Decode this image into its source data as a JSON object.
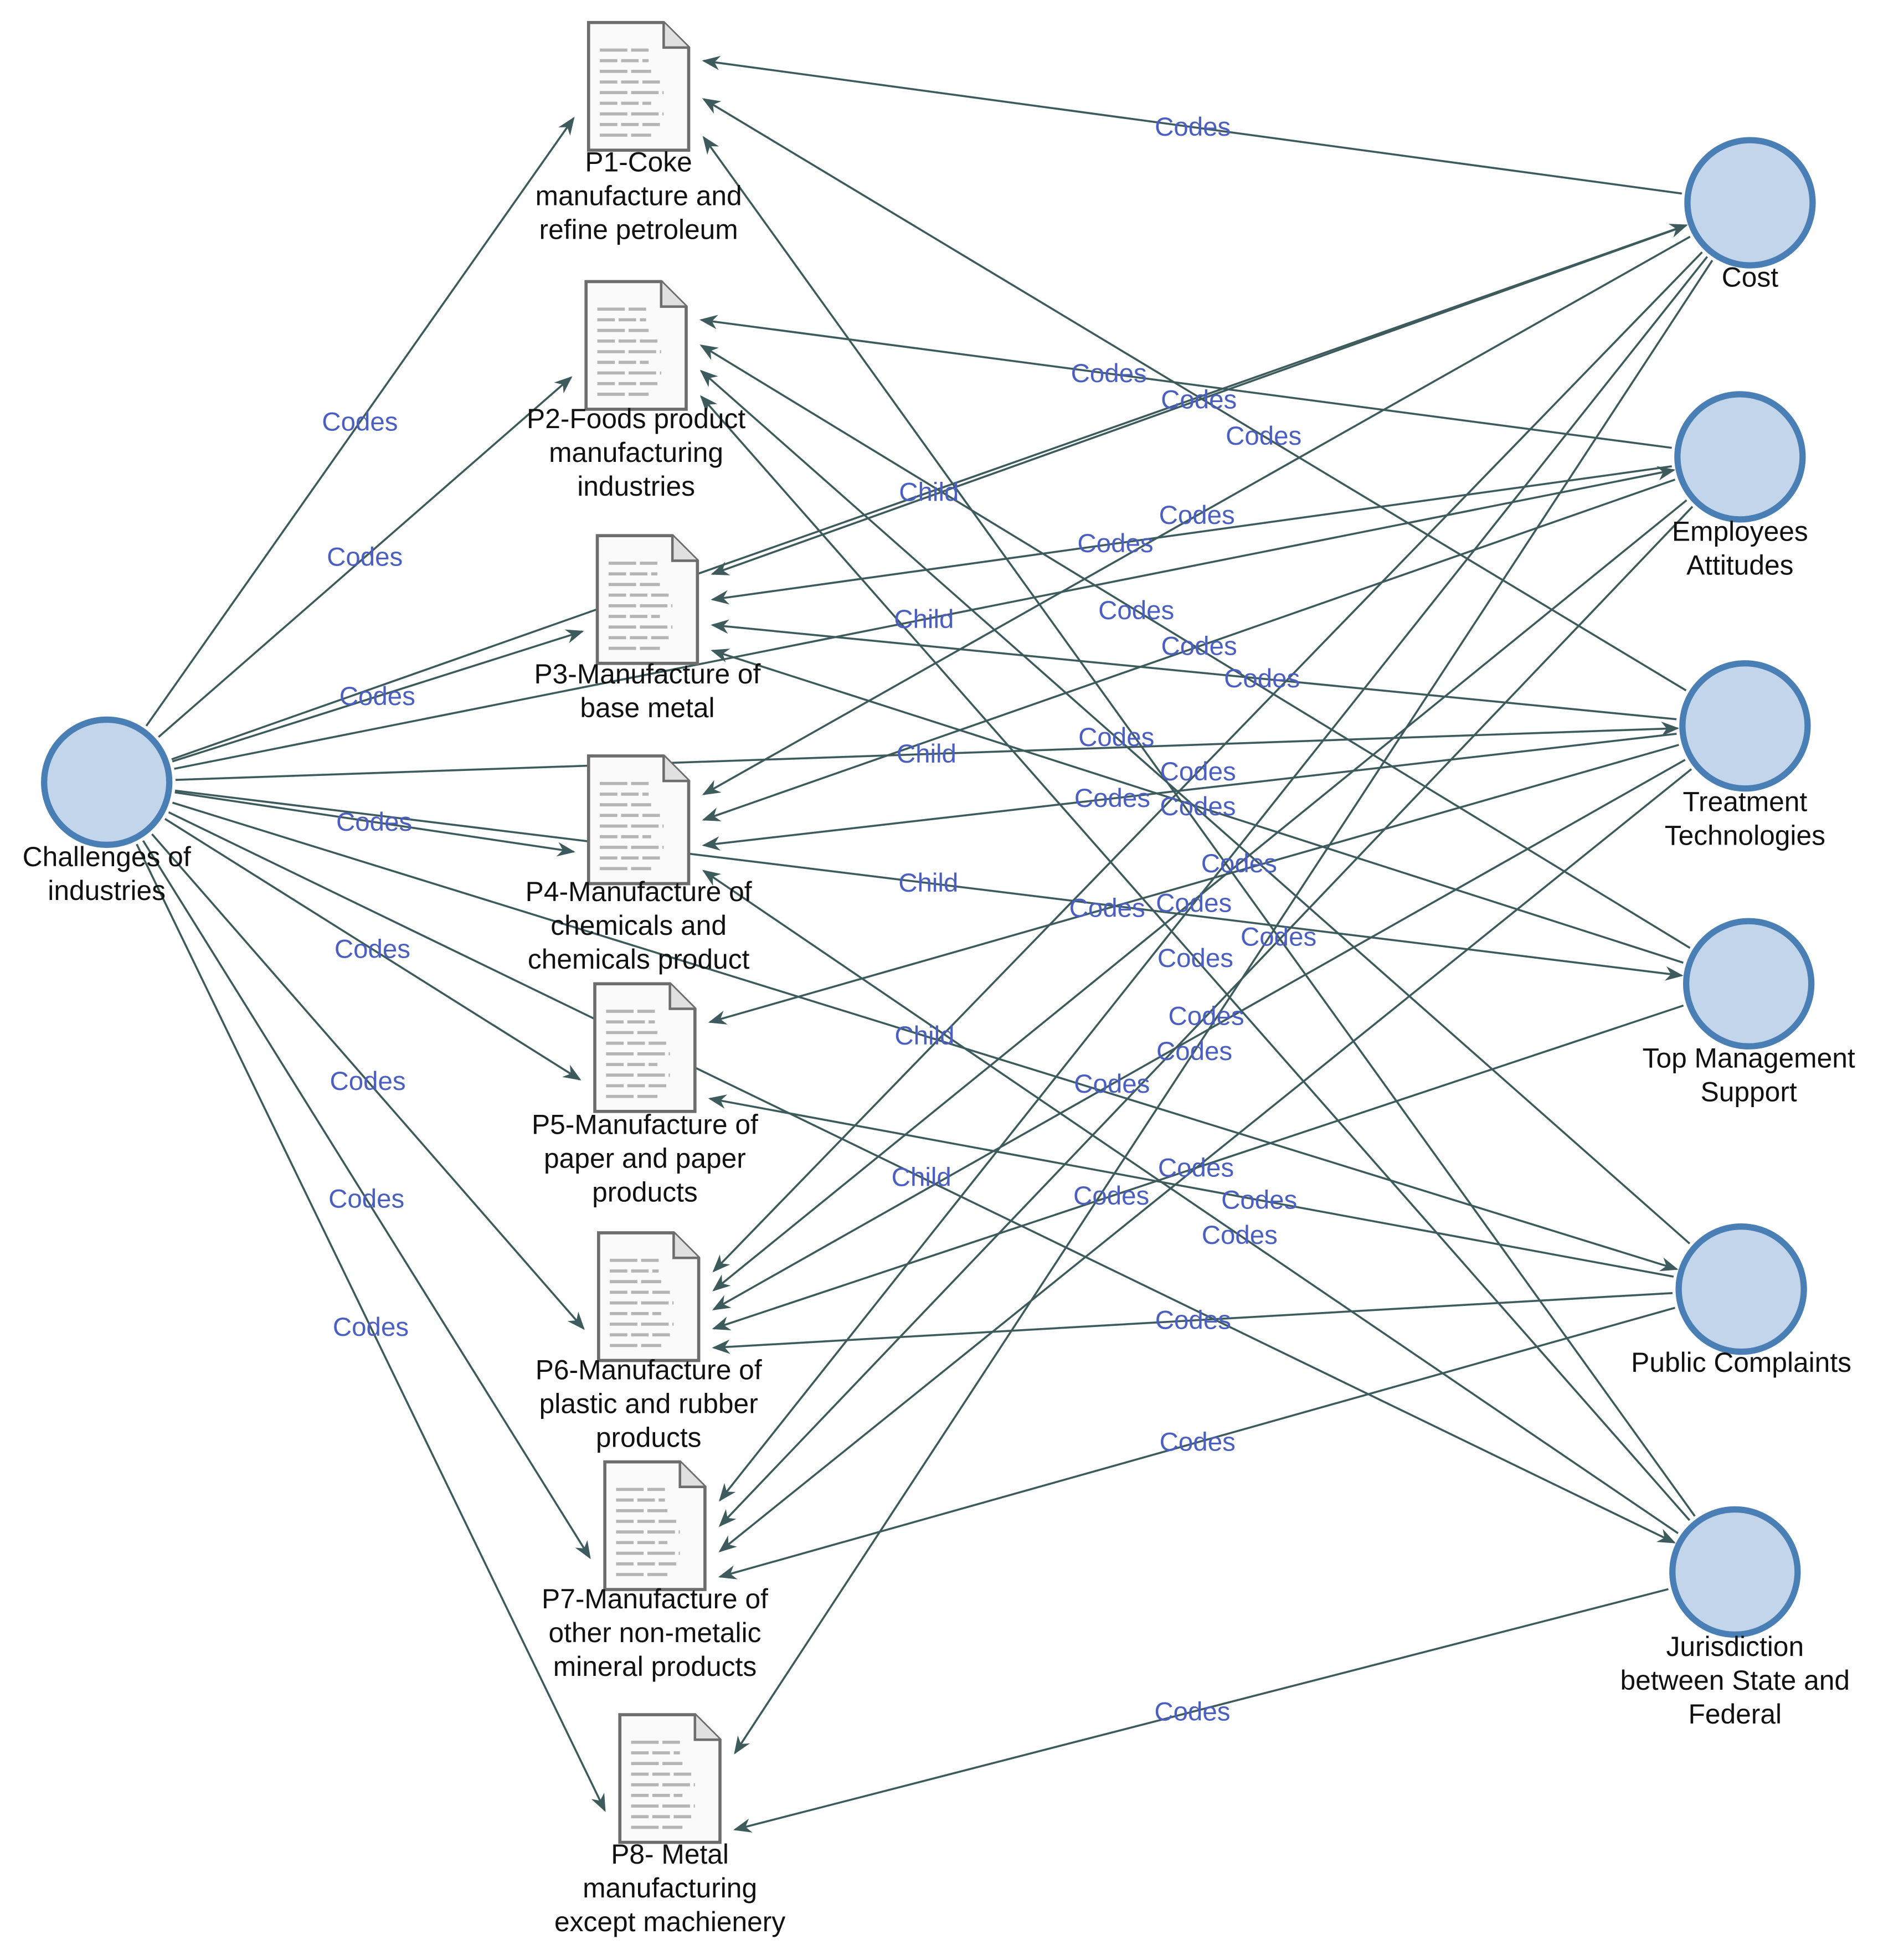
{
  "colors": {
    "edge": "#3d5b5c",
    "edge_label": "#4a5fc1",
    "circle_fill": "#c3d5ea",
    "circle_stroke": "#4a7fb5",
    "doc_stroke": "#6d6d6d"
  },
  "hub": {
    "id": "hub",
    "label": [
      "Challenges of",
      "industries"
    ],
    "icon": "circle-node"
  },
  "documents": [
    {
      "id": "P1",
      "label": [
        "P1-Coke",
        "manufacture and",
        "refine petroleum"
      ],
      "icon": "document-icon"
    },
    {
      "id": "P2",
      "label": [
        "P2-Foods product",
        "manufacturing",
        "industries"
      ],
      "icon": "document-icon"
    },
    {
      "id": "P3",
      "label": [
        "P3-Manufacture of",
        "base metal"
      ],
      "icon": "document-icon"
    },
    {
      "id": "P4",
      "label": [
        "P4-Manufacture of",
        "chemicals and",
        "chemicals product"
      ],
      "icon": "document-icon"
    },
    {
      "id": "P5",
      "label": [
        "P5-Manufacture of",
        "paper and paper",
        "products"
      ],
      "icon": "document-icon"
    },
    {
      "id": "P6",
      "label": [
        "P6-Manufacture of",
        "plastic and rubber",
        "products"
      ],
      "icon": "document-icon"
    },
    {
      "id": "P7",
      "label": [
        "P7-Manufacture of",
        "other non-metalic",
        "mineral products"
      ],
      "icon": "document-icon"
    },
    {
      "id": "P8",
      "label": [
        "P8- Metal",
        "manufacturing",
        "except machienery"
      ],
      "icon": "document-icon"
    }
  ],
  "themes": [
    {
      "id": "cost",
      "label": [
        "Cost"
      ],
      "icon": "circle-node"
    },
    {
      "id": "emp",
      "label": [
        "Employees",
        "Attitudes"
      ],
      "icon": "circle-node"
    },
    {
      "id": "treat",
      "label": [
        "Treatment",
        "Technologies"
      ],
      "icon": "circle-node"
    },
    {
      "id": "top",
      "label": [
        "Top Management",
        "Support"
      ],
      "icon": "circle-node"
    },
    {
      "id": "pub",
      "label": [
        "Public Complaints"
      ],
      "icon": "circle-node"
    },
    {
      "id": "jur",
      "label": [
        "Jurisdiction",
        "between State and",
        "Federal"
      ],
      "icon": "circle-node"
    }
  ],
  "edges": [
    {
      "from": "hub",
      "to": "P1",
      "label": "Codes"
    },
    {
      "from": "hub",
      "to": "P2",
      "label": "Codes"
    },
    {
      "from": "hub",
      "to": "P3",
      "label": "Codes"
    },
    {
      "from": "hub",
      "to": "P4",
      "label": "Codes"
    },
    {
      "from": "hub",
      "to": "P5",
      "label": "Codes"
    },
    {
      "from": "hub",
      "to": "P6",
      "label": "Codes"
    },
    {
      "from": "hub",
      "to": "P7",
      "label": "Codes"
    },
    {
      "from": "hub",
      "to": "P8",
      "label": "Codes"
    },
    {
      "from": "hub",
      "to": "cost",
      "label": "Child"
    },
    {
      "from": "hub",
      "to": "emp",
      "label": "Child"
    },
    {
      "from": "hub",
      "to": "treat",
      "label": "Child"
    },
    {
      "from": "hub",
      "to": "top",
      "label": "Child"
    },
    {
      "from": "hub",
      "to": "pub",
      "label": "Child"
    },
    {
      "from": "hub",
      "to": "jur",
      "label": "Child"
    },
    {
      "from": "cost",
      "to": "P1",
      "label": "Codes"
    },
    {
      "from": "cost",
      "to": "P3",
      "label": "Codes"
    },
    {
      "from": "cost",
      "to": "P4",
      "label": "Codes"
    },
    {
      "from": "cost",
      "to": "P6",
      "label": "Codes"
    },
    {
      "from": "cost",
      "to": "P7",
      "label": "Codes"
    },
    {
      "from": "cost",
      "to": "P8",
      "label": "Codes"
    },
    {
      "from": "emp",
      "to": "P2",
      "label": "Codes"
    },
    {
      "from": "emp",
      "to": "P3",
      "label": "Codes"
    },
    {
      "from": "emp",
      "to": "P4",
      "label": "Codes"
    },
    {
      "from": "emp",
      "to": "P6",
      "label": "Codes"
    },
    {
      "from": "emp",
      "to": "P7",
      "label": "Codes"
    },
    {
      "from": "treat",
      "to": "P1",
      "label": "Codes"
    },
    {
      "from": "treat",
      "to": "P3",
      "label": "Codes"
    },
    {
      "from": "treat",
      "to": "P4",
      "label": "Codes"
    },
    {
      "from": "treat",
      "to": "P5",
      "label": "Codes"
    },
    {
      "from": "treat",
      "to": "P6",
      "label": "Codes"
    },
    {
      "from": "treat",
      "to": "P7",
      "label": "Codes"
    },
    {
      "from": "top",
      "to": "P2",
      "label": "Codes"
    },
    {
      "from": "top",
      "to": "P3",
      "label": "Codes"
    },
    {
      "from": "top",
      "to": "P6",
      "label": "Codes"
    },
    {
      "from": "pub",
      "to": "P2",
      "label": "Codes"
    },
    {
      "from": "pub",
      "to": "P5",
      "label": "Codes"
    },
    {
      "from": "pub",
      "to": "P6",
      "label": "Codes"
    },
    {
      "from": "pub",
      "to": "P7",
      "label": "Codes"
    },
    {
      "from": "jur",
      "to": "P1",
      "label": "Codes"
    },
    {
      "from": "jur",
      "to": "P2",
      "label": "Codes"
    },
    {
      "from": "jur",
      "to": "P4",
      "label": "Codes"
    },
    {
      "from": "jur",
      "to": "P8",
      "label": "Codes"
    }
  ]
}
